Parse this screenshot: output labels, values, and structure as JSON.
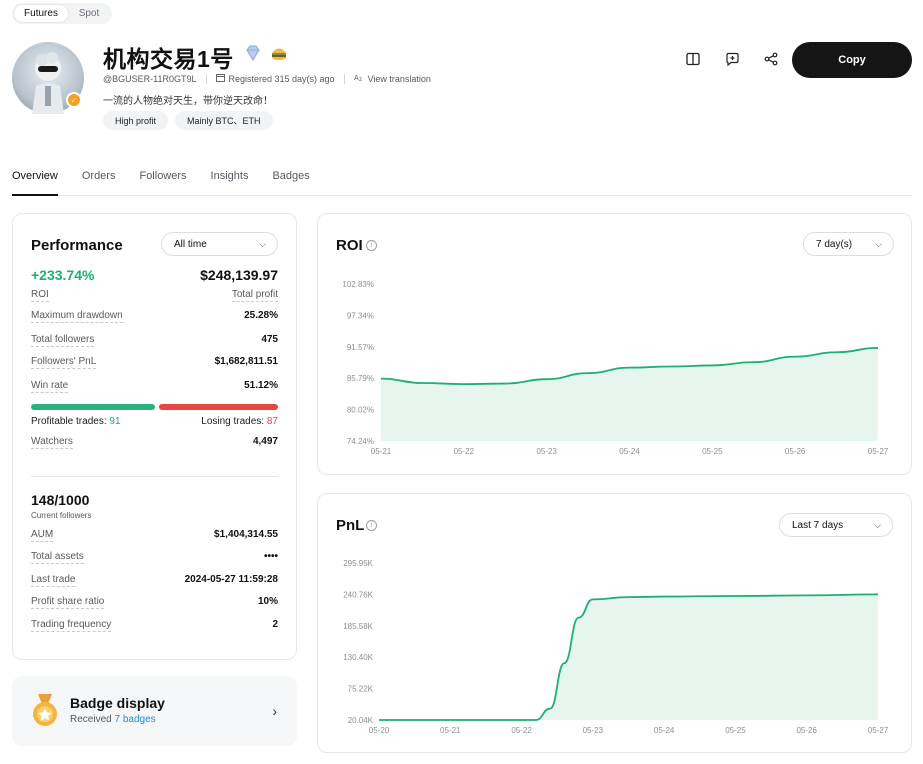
{
  "market_tabs": [
    "Futures",
    "Spot"
  ],
  "profile": {
    "name": "机构交易1号",
    "user_id": "@BGUSER-11R0GT9L",
    "registered": "Registered 315 day(s) ago",
    "translate": "View translation",
    "bio": "一流的人物绝对天生，带你逆天改命！",
    "tags": [
      "High profit",
      "Mainly BTC、ETH"
    ]
  },
  "actions": {
    "copy_label": "Copy"
  },
  "nav_tabs": [
    "Overview",
    "Orders",
    "Followers",
    "Insights",
    "Badges"
  ],
  "performance": {
    "title": "Performance",
    "period": "All time",
    "roi_value": "+233.74%",
    "roi_label": "ROI",
    "profit_value": "$248,139.97",
    "profit_label": "Total profit",
    "stats": [
      {
        "label": "Maximum drawdown",
        "value": "25.28%"
      },
      {
        "label": "Total followers",
        "value": "475"
      },
      {
        "label": "Followers' PnL",
        "value": "$1,682,811.51"
      },
      {
        "label": "Win rate",
        "value": "51.12%"
      }
    ],
    "profitable_label": "Profitable trades:",
    "profitable_count": "91",
    "losing_label": "Losing trades:",
    "losing_count": "87",
    "win_fraction": 0.5112,
    "watchers_label": "Watchers",
    "watchers_value": "4,497",
    "followers_value": "148/1000",
    "followers_sub": "Current followers",
    "details": [
      {
        "label": "AUM",
        "value": "$1,404,314.55"
      },
      {
        "label": "Total assets",
        "value": "••••"
      },
      {
        "label": "Last trade",
        "value": "2024-05-27 11:59:28"
      },
      {
        "label": "Profit share ratio",
        "value": "10%"
      },
      {
        "label": "Trading frequency",
        "value": "2"
      }
    ]
  },
  "badge_display": {
    "title": "Badge display",
    "received_prefix": "Received",
    "received_link": "7 badges"
  },
  "colors": {
    "accent_green": "#1fae73",
    "loss_red": "#e84545",
    "primary_dark": "#151515",
    "link_blue": "#1f8fd1"
  },
  "chart_data": [
    {
      "type": "area",
      "title": "ROI",
      "period": "7 day(s)",
      "y_ticks": [
        "102.83%",
        "97.34%",
        "91.57%",
        "85.79%",
        "80.02%",
        "74.24%"
      ],
      "x_ticks": [
        "05-21",
        "05-22",
        "05-23",
        "05-24",
        "05-25",
        "05-26",
        "05-27"
      ],
      "ylim": [
        74.24,
        102.83
      ],
      "series": [
        {
          "x": [
            0,
            0.5,
            1,
            1.5,
            2,
            2.5,
            3,
            3.5,
            4,
            4.5,
            5,
            5.5,
            6
          ],
          "values": [
            85.6,
            84.8,
            84.6,
            84.7,
            85.5,
            86.6,
            87.6,
            87.8,
            88.0,
            88.6,
            89.6,
            90.4,
            91.2
          ]
        }
      ]
    },
    {
      "type": "area",
      "title": "PnL",
      "period": "Last 7 days",
      "y_ticks": [
        "295.95K",
        "240.76K",
        "185.58K",
        "130.40K",
        "75.22K",
        "20.04K"
      ],
      "x_ticks": [
        "05-20",
        "05-21",
        "05-22",
        "05-23",
        "05-24",
        "05-25",
        "05-26",
        "05-27"
      ],
      "ylim": [
        20.04,
        295.95
      ],
      "series": [
        {
          "x": [
            0,
            1,
            1.8,
            2.2,
            2.4,
            2.6,
            2.8,
            3,
            3.5,
            4,
            5,
            6,
            7
          ],
          "values": [
            20.04,
            20.04,
            20.04,
            20.04,
            40,
            120,
            200,
            232,
            236,
            237,
            238,
            239,
            240.76
          ]
        }
      ]
    }
  ]
}
